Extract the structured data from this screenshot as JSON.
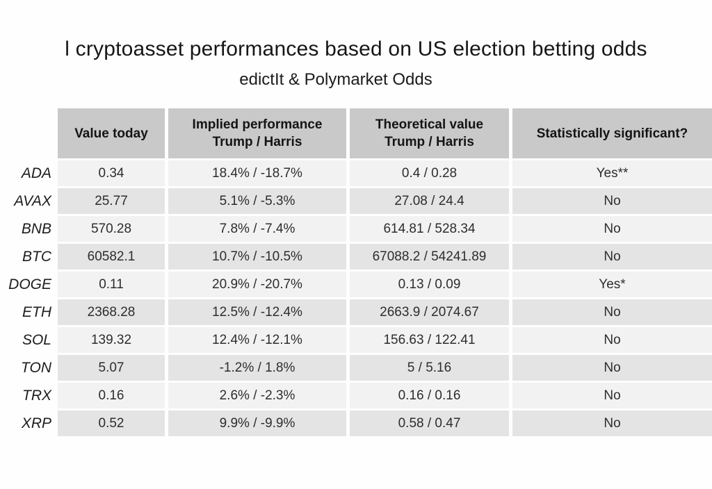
{
  "chart_data": {
    "type": "table",
    "title": "l cryptoasset performances based on US election betting odds",
    "subtitle": "edictIt & Polymarket Odds",
    "columns": [
      {
        "line1": "Value today",
        "line2": ""
      },
      {
        "line1": "Implied performance",
        "line2": "Trump / Harris"
      },
      {
        "line1": "Theoretical value",
        "line2": "Trump / Harris"
      },
      {
        "line1": "Statistically significant?",
        "line2": ""
      }
    ],
    "rows": [
      {
        "asset": "ADA",
        "value_today": "0.34",
        "implied_performance": "18.4% / -18.7%",
        "theoretical_value": "0.4 / 0.28",
        "significant": "Yes**"
      },
      {
        "asset": "AVAX",
        "value_today": "25.77",
        "implied_performance": "5.1% / -5.3%",
        "theoretical_value": "27.08 / 24.4",
        "significant": "No"
      },
      {
        "asset": "BNB",
        "value_today": "570.28",
        "implied_performance": "7.8% / -7.4%",
        "theoretical_value": "614.81 / 528.34",
        "significant": "No"
      },
      {
        "asset": "BTC",
        "value_today": "60582.1",
        "implied_performance": "10.7% / -10.5%",
        "theoretical_value": "67088.2 / 54241.89",
        "significant": "No"
      },
      {
        "asset": "DOGE",
        "value_today": "0.11",
        "implied_performance": "20.9% / -20.7%",
        "theoretical_value": "0.13 / 0.09",
        "significant": "Yes*"
      },
      {
        "asset": "ETH",
        "value_today": "2368.28",
        "implied_performance": "12.5% / -12.4%",
        "theoretical_value": "2663.9 / 2074.67",
        "significant": "No"
      },
      {
        "asset": "SOL",
        "value_today": "139.32",
        "implied_performance": "12.4% / -12.1%",
        "theoretical_value": "156.63 / 122.41",
        "significant": "No"
      },
      {
        "asset": "TON",
        "value_today": "5.07",
        "implied_performance": "-1.2% / 1.8%",
        "theoretical_value": "5 / 5.16",
        "significant": "No"
      },
      {
        "asset": "TRX",
        "value_today": "0.16",
        "implied_performance": "2.6% / -2.3%",
        "theoretical_value": "0.16 / 0.16",
        "significant": "No"
      },
      {
        "asset": "XRP",
        "value_today": "0.52",
        "implied_performance": "9.9% / -9.9%",
        "theoretical_value": "0.58 / 0.47",
        "significant": "No"
      }
    ]
  },
  "colors": {
    "header_bg": "#c9c9c9",
    "row_light": "#f2f2f2",
    "row_dark": "#e4e4e4",
    "text": "#2d2d2d"
  }
}
